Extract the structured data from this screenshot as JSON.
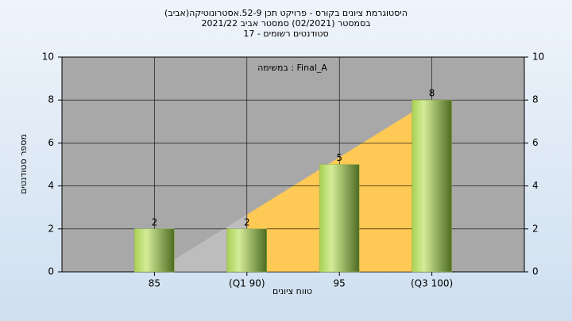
{
  "chart_data": {
    "type": "bar",
    "title": [
      "(היסטוגרמת ציונים בקורס - פרויקט תכן 52-9.אסטרונוטיקה(אביב",
      "בסמסטר  (02/2021)  סמסטר אביב 2021/22",
      "סטודנטים רשומים - 17"
    ],
    "annotation": "במשימה : Final_A",
    "x_label": "טווח ציונים",
    "y_label": "מספר סטודנטים",
    "categories": [
      "85",
      "(Q1 90)",
      "95",
      "(Q3 100)"
    ],
    "values": [
      2,
      2,
      5,
      8
    ],
    "color": "#8fb545",
    "ylim": [
      0,
      10
    ],
    "yticks": [
      0,
      2,
      4,
      6,
      8,
      10
    ],
    "y2lim": [
      0,
      10
    ],
    "y2ticks": [
      0,
      2,
      4,
      6,
      8,
      10
    ],
    "grid": true
  }
}
